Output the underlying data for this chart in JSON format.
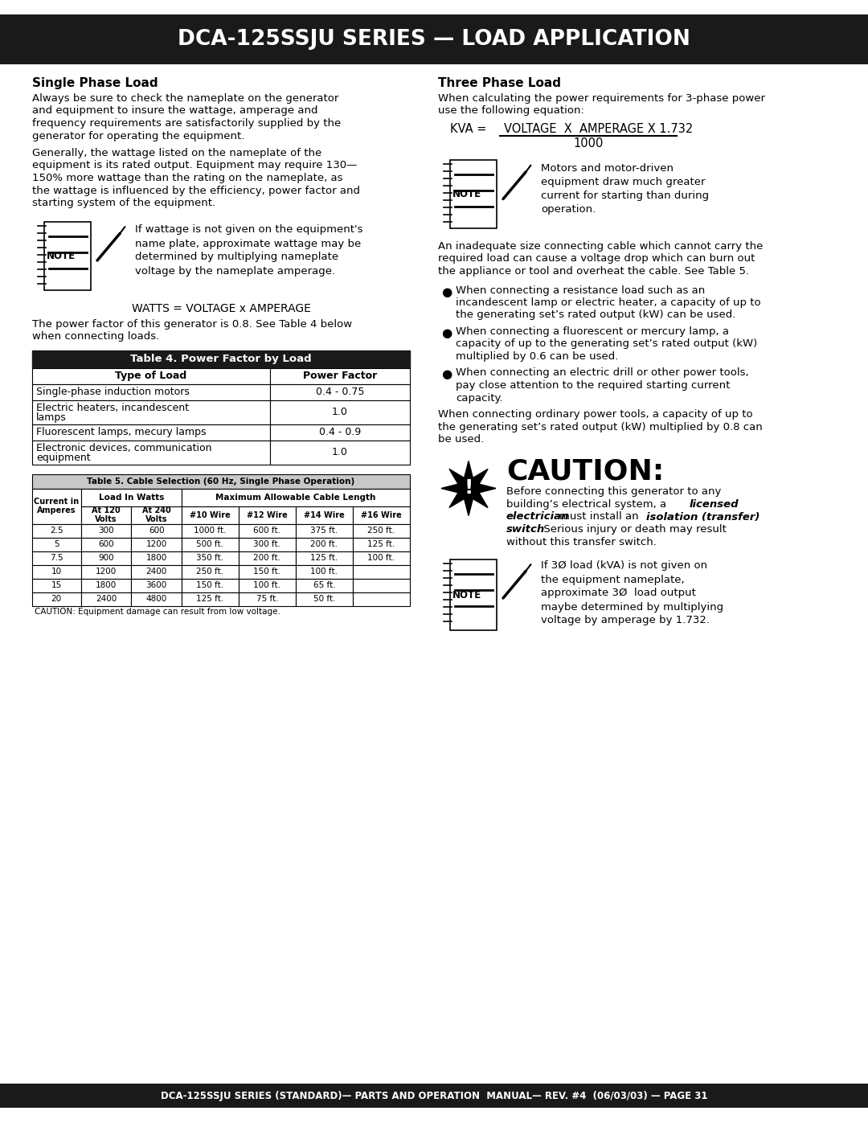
{
  "title": "DCA-125SSJU SERIES — LOAD APPLICATION",
  "footer": "DCA-125SSJU SERIES (STANDARD)— PARTS AND OPERATION  MANUAL— REV. #4  (06/03/03) — PAGE 31",
  "header_bg": "#1a1a1a",
  "header_text_color": "#ffffff",
  "footer_bg": "#1a1a1a",
  "footer_text_color": "#ffffff",
  "body_bg": "#ffffff",
  "single_phase_title": "Single Phase Load",
  "single_phase_p1": "Always be sure to check the nameplate on the generator\nand equipment to insure the wattage, amperage and\nfrequency requirements are satisfactorily supplied by the\ngenerator for operating the equipment.",
  "single_phase_p2": "Generally, the wattage listed on the nameplate of the\nequipment is its rated output. Equipment may require 130—\n150% more wattage than the rating on the nameplate, as\nthe wattage is influenced by the efficiency, power factor and\nstarting system of the equipment.",
  "single_phase_note": "If wattage is not given on the equipment's\nname plate, approximate wattage may be\ndetermined by multiplying nameplate\nvoltage by the nameplate amperage.",
  "watts_formula": "WATTS = VOLTAGE x AMPERAGE",
  "power_factor_text": "The power factor of this generator is 0.8. See Table 4 below\nwhen connecting loads.",
  "table4_title": "Table 4. Power Factor by Load",
  "table4_col1": "Type of Load",
  "table4_col2": "Power Factor",
  "table4_rows": [
    [
      "Single-phase induction motors",
      "0.4 - 0.75"
    ],
    [
      "Electric heaters, incandescent\nlamps",
      "1.0"
    ],
    [
      "Fluorescent lamps, mecury lamps",
      "0.4 - 0.9"
    ],
    [
      "Electronic devices, communication\nequipment",
      "1.0"
    ]
  ],
  "table5_title": "Table 5. Cable Selection (60 Hz, Single Phase Operation)",
  "table5_rows": [
    [
      "2.5",
      "300",
      "600",
      "1000 ft.",
      "600 ft.",
      "375 ft.",
      "250 ft."
    ],
    [
      "5",
      "600",
      "1200",
      "500 ft.",
      "300 ft.",
      "200 ft.",
      "125 ft."
    ],
    [
      "7.5",
      "900",
      "1800",
      "350 ft.",
      "200 ft.",
      "125 ft.",
      "100 ft."
    ],
    [
      "10",
      "1200",
      "2400",
      "250 ft.",
      "150 ft.",
      "100 ft.",
      ""
    ],
    [
      "15",
      "1800",
      "3600",
      "150 ft.",
      "100 ft.",
      "65 ft.",
      ""
    ],
    [
      "20",
      "2400",
      "4800",
      "125 ft.",
      "75 ft.",
      "50 ft.",
      ""
    ]
  ],
  "table5_caution": "CAUTION: Equipment damage can result from low voltage.",
  "three_phase_title": "Three Phase Load",
  "three_phase_p1": "When calculating the power requirements for 3-phase power\nuse the following equation:",
  "kva_formula_label": "KVA =",
  "kva_numerator": "VOLTAGE  X  AMPERAGE X 1.732",
  "kva_denominator": "1000",
  "three_phase_note": "Motors and motor-driven\nequipment draw much greater\ncurrent for starting than during\noperation.",
  "three_phase_p2": "An inadequate size connecting cable which cannot carry the\nrequired load can cause a voltage drop which can burn out\nthe appliance or tool and overheat the cable. See Table 5.",
  "bullet1": "When connecting a resistance load such as an\nincandescent lamp or electric heater, a capacity of up to\nthe generating set’s rated output (kW) can be used.",
  "bullet2": "When connecting a fluorescent or mercury lamp, a\ncapacity of up to the generating set’s rated output (kW)\nmultiplied by 0.6 can be used.",
  "bullet3": "When connecting an electric drill or other power tools,\npay close attention to the required starting current\ncapacity.",
  "three_phase_p3": "When connecting ordinary power tools, a capacity of up to\nthe generating set’s rated output (kW) multiplied by 0.8 can\nbe used.",
  "caution_title": "CAUTION:",
  "bottom_note": "If 3Ø load (kVA) is not given on\nthe equipment nameplate,\napproximate 3Ø  load output\nmaybe determined by multiplying\nvoltage by amperage by 1.732."
}
